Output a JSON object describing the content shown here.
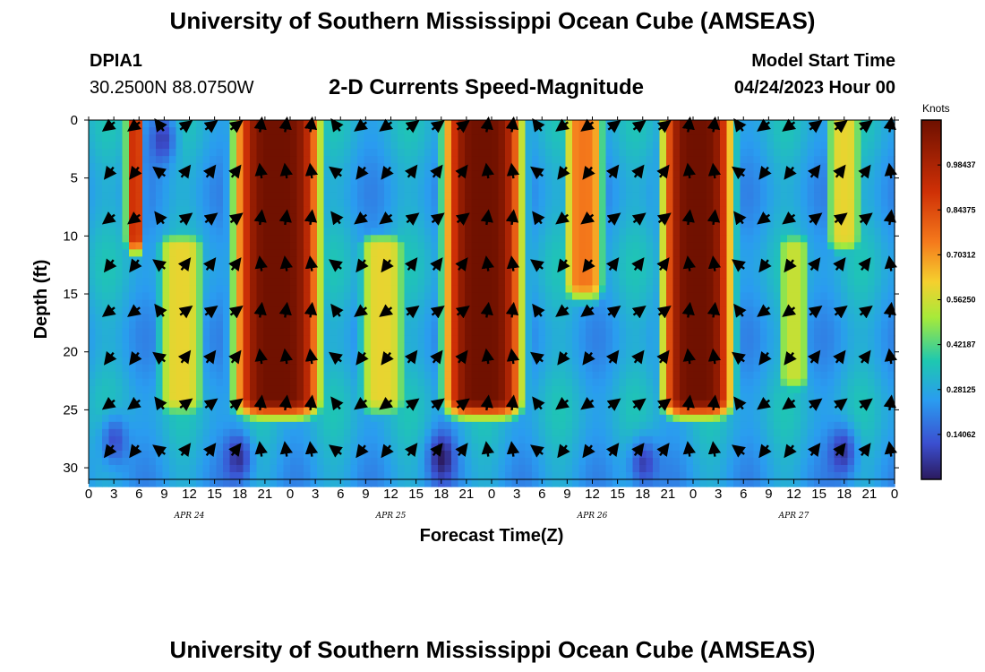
{
  "header": {
    "title": "University of Southern Mississippi Ocean Cube (AMSEAS)",
    "station_id": "DPIA1",
    "coordinates": "30.2500N  88.0750W",
    "plot_title": "2-D Currents Speed-Magnitude",
    "model_start_label": "Model Start Time",
    "model_start_value": "04/24/2023 Hour 00"
  },
  "footer": {
    "title": "University of Southern Mississippi Ocean Cube (AMSEAS)"
  },
  "colors": {
    "low": "#2b1a5e",
    "mid": "#1ec8b0",
    "high": "#7a1200",
    "arrow": "#000000"
  },
  "chart_data": {
    "type": "heatmap",
    "title": "2-D Currents Speed-Magnitude",
    "xlabel": "Forecast Time(Z)",
    "ylabel": "Depth (ft)",
    "x_tick_labels": [
      "0",
      "3",
      "6",
      "9",
      "12",
      "15",
      "18",
      "21",
      "0",
      "3",
      "6",
      "9",
      "12",
      "15",
      "18",
      "21",
      "0",
      "3",
      "6",
      "9",
      "12",
      "15",
      "18",
      "21",
      "0",
      "3",
      "6",
      "9",
      "12",
      "15",
      "18",
      "21",
      "0"
    ],
    "x_range_hours": [
      0,
      96
    ],
    "date_labels": [
      {
        "label": "APR 24",
        "hour": 12
      },
      {
        "label": "APR 25",
        "hour": 36
      },
      {
        "label": "APR 26",
        "hour": 60
      },
      {
        "label": "APR 27",
        "hour": 84
      }
    ],
    "y_ticks": [
      0,
      5,
      10,
      15,
      20,
      25,
      30
    ],
    "y_range_ft": [
      0,
      31
    ],
    "colorbar": {
      "title": "Knots",
      "ticks": [
        "0.98437",
        "0.84375",
        "0.70312",
        "0.56250",
        "0.42187",
        "0.28125",
        "0.14062"
      ],
      "tick_values": [
        0.984375,
        0.84375,
        0.703125,
        0.5625,
        0.421875,
        0.28125,
        0.140625
      ],
      "range": [
        0,
        1.125
      ]
    },
    "high_speed_bands": [
      {
        "hour_center": 5.5,
        "hour_halfwidth": 1.2,
        "depth_max": 10,
        "peak": 0.9
      },
      {
        "hour_center": 22.5,
        "hour_halfwidth": 5.5,
        "depth_max": 24,
        "peak": 1.12
      },
      {
        "hour_center": 47,
        "hour_halfwidth": 5.0,
        "depth_max": 24,
        "peak": 1.12
      },
      {
        "hour_center": 59,
        "hour_halfwidth": 2.5,
        "depth_max": 14,
        "peak": 0.75
      },
      {
        "hour_center": 72.5,
        "hour_halfwidth": 4.5,
        "depth_max": 24,
        "peak": 1.12
      },
      {
        "hour_center": 90,
        "hour_halfwidth": 2.2,
        "depth_max": 10,
        "peak": 0.6
      },
      {
        "hour_center": 11,
        "hour_halfwidth": 3.0,
        "depth_min": 11,
        "depth_max": 24,
        "peak": 0.6
      },
      {
        "hour_center": 35,
        "hour_halfwidth": 3.0,
        "depth_min": 11,
        "depth_max": 24,
        "peak": 0.6
      },
      {
        "hour_center": 84,
        "hour_halfwidth": 2.0,
        "depth_min": 11,
        "depth_max": 22,
        "peak": 0.55
      }
    ],
    "arrow_hours": [
      2.5,
      5.5,
      8.5,
      11.5,
      14.5,
      17.5,
      20.5,
      23.5,
      26.5,
      29.5,
      32.5,
      35.5,
      38.5,
      41.5,
      44.5,
      47.5,
      50.5,
      53.5,
      56.5,
      59.5,
      62.5,
      65.5,
      68.5,
      71.5,
      74.5,
      77.5,
      80.5,
      83.5,
      86.5,
      89.5,
      92.5,
      95.5
    ],
    "arrow_depths_ft": [
      0.5,
      4.5,
      8.5,
      12.5,
      16.5,
      20.5,
      24.5,
      28.5
    ],
    "arrow_direction_pattern_deg": [
      225,
      225,
      135,
      45,
      45,
      45,
      90,
      90,
      90,
      135,
      225,
      225,
      45,
      45,
      45,
      90,
      90,
      135,
      225,
      225,
      45,
      45,
      45,
      90,
      90,
      135,
      225,
      225,
      45,
      45,
      45,
      90
    ]
  }
}
